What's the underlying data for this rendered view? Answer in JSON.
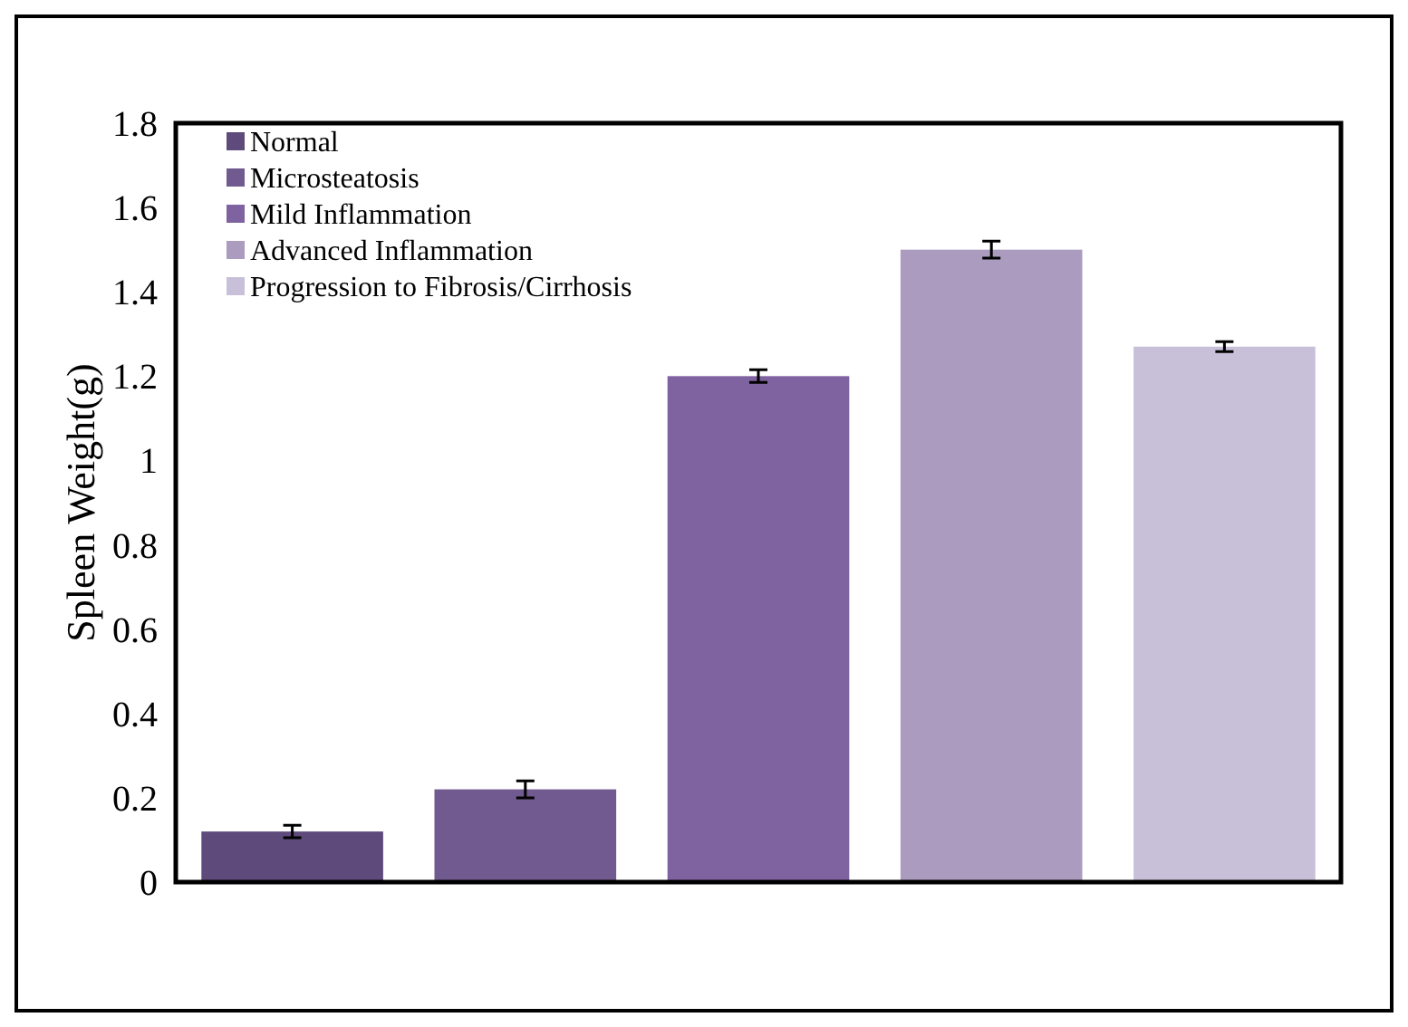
{
  "chart_data": {
    "type": "bar",
    "ylabel": "Spleen Weight(g)",
    "categories": [
      null,
      null,
      null,
      null,
      null
    ],
    "stacked": true,
    "series": [
      {
        "name": "Normal",
        "color": "#5f4b7b",
        "values": [
          0.12,
          null,
          null,
          null,
          null
        ],
        "errors": [
          0.015,
          null,
          null,
          null,
          null
        ]
      },
      {
        "name": "Microsteatosis",
        "color": "#705a8f",
        "values": [
          null,
          0.22,
          null,
          null,
          null
        ],
        "errors": [
          null,
          0.02,
          null,
          null,
          null
        ]
      },
      {
        "name": "Mild Inflammation",
        "color": "#7f62a0",
        "values": [
          null,
          null,
          1.2,
          null,
          null
        ],
        "errors": [
          null,
          null,
          0.015,
          null,
          null
        ]
      },
      {
        "name": "Advanced Inflammation",
        "color": "#aa9bbf",
        "values": [
          null,
          null,
          null,
          1.5,
          null
        ],
        "errors": [
          null,
          null,
          null,
          0.02,
          null
        ]
      },
      {
        "name": "Progression to Fibrosis/Cirrhosis",
        "color": "#c8c0d8",
        "values": [
          null,
          null,
          null,
          null,
          1.27
        ],
        "errors": [
          null,
          null,
          null,
          null,
          0.012
        ]
      }
    ],
    "ylim": [
      0,
      1.8
    ],
    "yticks": [
      0,
      0.2,
      0.4,
      0.6,
      0.8,
      1,
      1.2,
      1.4,
      1.6,
      1.8
    ],
    "tick_labels": "y",
    "legend": "top left"
  }
}
